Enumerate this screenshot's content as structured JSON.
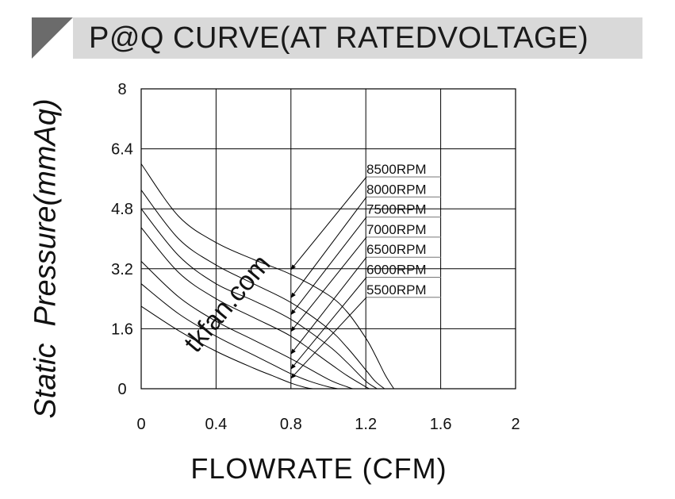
{
  "header": {
    "title": "P@Q CURVE(AT RATEDVOLTAGE)"
  },
  "watermark": "tkfan.com",
  "chart_data": {
    "type": "line",
    "title": "P@Q CURVE(AT RATEDVOLTAGE)",
    "xlabel": "FLOWRATE (CFM)",
    "ylabel": "Static  Pressure(mmAq)",
    "xlim": [
      0,
      2
    ],
    "ylim": [
      0,
      8
    ],
    "xticks": [
      "0",
      "0.4",
      "0.8",
      "1.2",
      "1.6",
      "2"
    ],
    "yticks": [
      "0",
      "1.6",
      "3.2",
      "4.8",
      "6.4",
      "8"
    ],
    "grid": true,
    "legend": "callout-labels-right",
    "series": [
      {
        "name": "8500RPM",
        "x": [
          0,
          0.2,
          0.4,
          0.6,
          0.8,
          1.0,
          1.1,
          1.2,
          1.25,
          1.3,
          1.33,
          1.35
        ],
        "y": [
          6.0,
          4.6,
          3.9,
          3.45,
          3.05,
          2.5,
          2.05,
          1.35,
          0.9,
          0.4,
          0.15,
          0
        ]
      },
      {
        "name": "8000RPM",
        "x": [
          0,
          0.2,
          0.4,
          0.6,
          0.8,
          1.0,
          1.1,
          1.2,
          1.25,
          1.3
        ],
        "y": [
          5.3,
          4.0,
          3.3,
          2.8,
          2.3,
          1.6,
          1.1,
          0.5,
          0.2,
          0
        ]
      },
      {
        "name": "7500RPM",
        "x": [
          0,
          0.2,
          0.4,
          0.6,
          0.8,
          1.0,
          1.1,
          1.2,
          1.26
        ],
        "y": [
          4.8,
          3.55,
          2.8,
          2.35,
          1.85,
          1.15,
          0.7,
          0.2,
          0
        ]
      },
      {
        "name": "7000RPM",
        "x": [
          0,
          0.2,
          0.4,
          0.6,
          0.8,
          1.0,
          1.1,
          1.2,
          1.22
        ],
        "y": [
          4.3,
          3.1,
          2.4,
          1.9,
          1.4,
          0.7,
          0.35,
          0.05,
          0
        ]
      },
      {
        "name": "6500RPM",
        "x": [
          0,
          0.2,
          0.4,
          0.6,
          0.8,
          1.0,
          1.1,
          1.13
        ],
        "y": [
          3.4,
          2.45,
          1.8,
          1.3,
          0.8,
          0.25,
          0.05,
          0
        ]
      },
      {
        "name": "6000RPM",
        "x": [
          0,
          0.2,
          0.4,
          0.6,
          0.7,
          0.8,
          0.9,
          1.0,
          1.05
        ],
        "y": [
          2.8,
          2.0,
          1.4,
          0.9,
          0.65,
          0.4,
          0.2,
          0.05,
          0
        ]
      },
      {
        "name": "5500RPM",
        "x": [
          0,
          0.2,
          0.4,
          0.6,
          0.7,
          0.8,
          0.88,
          0.92
        ],
        "y": [
          2.2,
          1.55,
          1.0,
          0.55,
          0.35,
          0.15,
          0.03,
          0
        ]
      }
    ]
  }
}
